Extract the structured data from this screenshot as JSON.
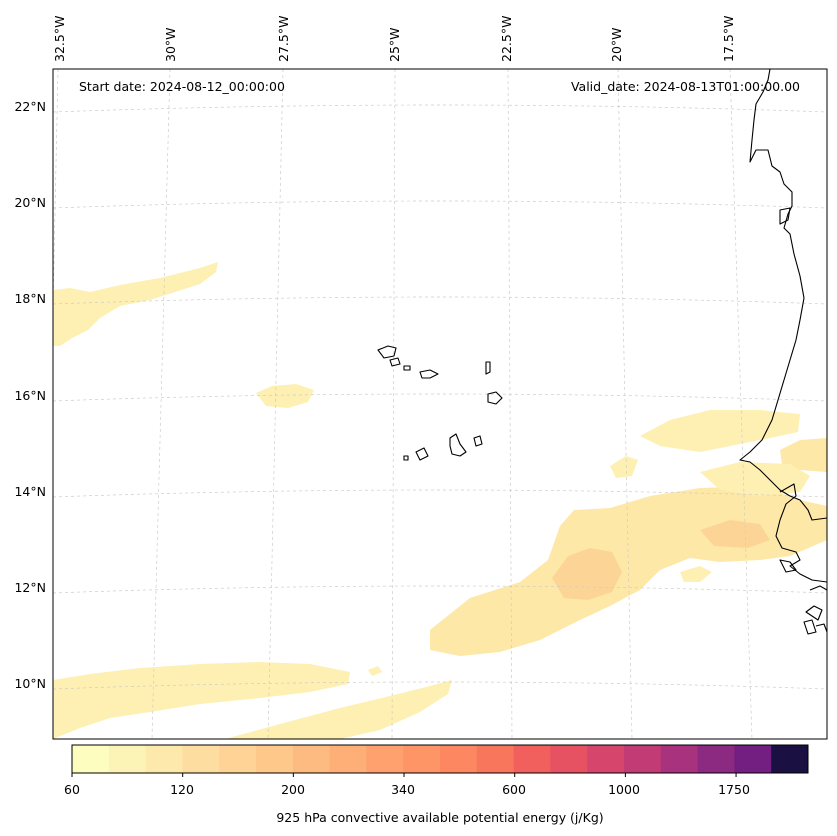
{
  "header": {
    "start_date": "Start date: 2024-08-12_00:00:00",
    "valid_date": "Valid_date: 2024-08-13T01:00:00.00"
  },
  "longitude_labels": [
    "32.5°W",
    "30°W",
    "27.5°W",
    "25°W",
    "22.5°W",
    "20°W",
    "17.5°W"
  ],
  "latitude_labels": [
    "22°N",
    "20°N",
    "18°N",
    "16°N",
    "14°N",
    "12°N",
    "10°N"
  ],
  "colorbar": {
    "tick_labels": [
      "60",
      "120",
      "200",
      "340",
      "600",
      "1000",
      "1750"
    ],
    "label": "925 hPa convective available potential energy (j/Kg)",
    "levels": [
      60,
      80,
      100,
      120,
      140,
      160,
      200,
      240,
      280,
      340,
      400,
      480,
      600,
      700,
      850,
      1000,
      1200,
      1500,
      1750,
      2100
    ],
    "colors": [
      "#fcfdbf",
      "#fcf4b6",
      "#fde9ab",
      "#fddea0",
      "#fed395",
      "#fec88b",
      "#febb81",
      "#feae77",
      "#fea16e",
      "#fd9567",
      "#fc8761",
      "#f8765c",
      "#f1605d",
      "#e75263",
      "#d6456c",
      "#c23b75",
      "#a8327d",
      "#8c2981",
      "#721f81",
      "#1a1042"
    ]
  },
  "chart_data": {
    "type": "map",
    "field": "925 hPa convective available potential energy",
    "units": "j/Kg",
    "lon_range": [
      -33,
      -15.8
    ],
    "lat_range": [
      8.9,
      22.8
    ],
    "colorbar_ticks": [
      60,
      120,
      200,
      340,
      600,
      1000,
      1750
    ]
  },
  "colors": {
    "land_outline": "#000000",
    "gridline": "#cccccc",
    "frame": "#000000"
  }
}
